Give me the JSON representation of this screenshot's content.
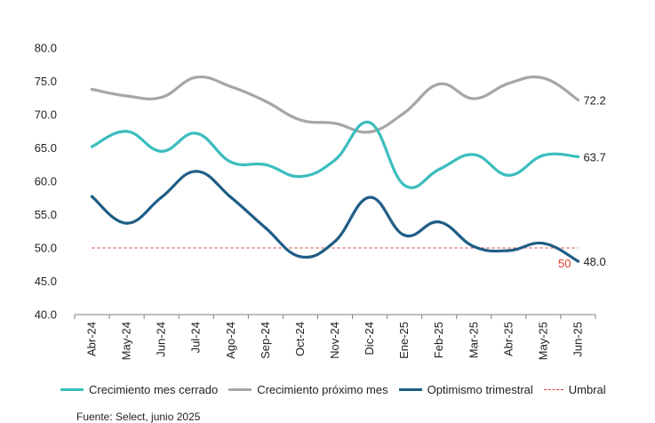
{
  "chart_data": {
    "type": "line",
    "categories": [
      "Abr-24",
      "May-24",
      "Jun-24",
      "Jul-24",
      "Ago-24",
      "Sep-24",
      "Oct-24",
      "Nov-24",
      "Dic-24",
      "Ene-25",
      "Feb-25",
      "Mar-25",
      "Abr-25",
      "May-25",
      "Jun-25"
    ],
    "ylim": [
      40,
      80
    ],
    "yticks": [
      "40.0",
      "45.0",
      "50.0",
      "55.0",
      "60.0",
      "65.0",
      "70.0",
      "75.0",
      "80.0"
    ],
    "grid": false,
    "legend_position": "bottom",
    "series": [
      {
        "name": "Crecimiento mes cerrado",
        "color": "#3bbdbf",
        "values": [
          65.2,
          67.5,
          64.5,
          67.2,
          62.9,
          62.5,
          60.7,
          63.2,
          68.8,
          59.4,
          61.8,
          64.0,
          60.9,
          63.9,
          63.7
        ],
        "end_label": "63.7"
      },
      {
        "name": "Crecimiento próximo mes",
        "color": "#a6a6a6",
        "values": [
          73.8,
          72.8,
          72.6,
          75.6,
          74.2,
          72.0,
          69.2,
          68.7,
          67.4,
          70.3,
          74.6,
          72.4,
          74.7,
          75.5,
          72.2
        ],
        "end_label": "72.2"
      },
      {
        "name": "Optimismo trimestral",
        "color": "#1f5d86",
        "values": [
          57.7,
          53.7,
          57.6,
          61.5,
          57.6,
          53.0,
          48.7,
          51.0,
          57.6,
          51.9,
          53.9,
          50.2,
          49.6,
          50.7,
          48.0
        ],
        "end_label": "48.0"
      }
    ],
    "threshold": {
      "name": "Umbral",
      "value": 50,
      "label": "50",
      "color": "#e03a2f"
    },
    "source_note": "Fuente: Select, junio 2025"
  },
  "colors": {
    "axis": "#7f7f7f",
    "text": "#222222",
    "background": "#ffffff"
  }
}
